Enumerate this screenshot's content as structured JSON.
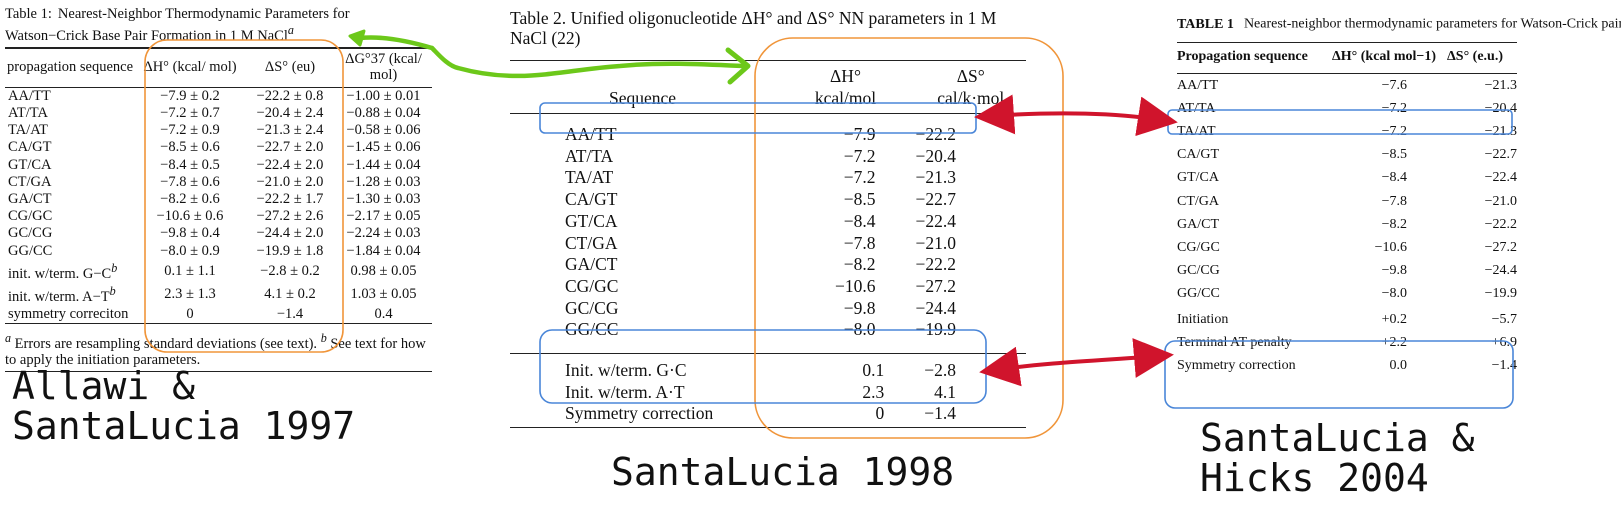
{
  "colors": {
    "orange": "#f0953a",
    "blue": "#4a86d8",
    "green": "#6cc81a",
    "red": "#d0142c"
  },
  "panel1": {
    "caption_prefix": "Table 1:",
    "caption_rest": "Nearest-Neighbor Thermodynamic Parameters for Watson−Crick Base Pair Formation in 1 M NaCl",
    "caption_sup": "a",
    "headers": {
      "seq": "propagation sequence",
      "dh": "ΔH° (kcal/ mol)",
      "ds": "ΔS° (eu)",
      "dg": "ΔG°37 (kcal/ mol)"
    },
    "rows": [
      {
        "seq": "AA/TT",
        "dh": "−7.9 ± 0.2",
        "ds": "−22.2 ± 0.8",
        "dg": "−1.00 ± 0.01"
      },
      {
        "seq": "AT/TA",
        "dh": "−7.2 ± 0.7",
        "ds": "−20.4 ± 2.4",
        "dg": "−0.88 ± 0.04"
      },
      {
        "seq": "TA/AT",
        "dh": "−7.2 ± 0.9",
        "ds": "−21.3 ± 2.4",
        "dg": "−0.58 ± 0.06"
      },
      {
        "seq": "CA/GT",
        "dh": "−8.5 ± 0.6",
        "ds": "−22.7 ± 2.0",
        "dg": "−1.45 ± 0.06"
      },
      {
        "seq": "GT/CA",
        "dh": "−8.4 ± 0.5",
        "ds": "−22.4 ± 2.0",
        "dg": "−1.44 ± 0.04"
      },
      {
        "seq": "CT/GA",
        "dh": "−7.8 ± 0.6",
        "ds": "−21.0 ± 2.0",
        "dg": "−1.28 ± 0.03"
      },
      {
        "seq": "GA/CT",
        "dh": "−8.2 ± 0.6",
        "ds": "−22.2 ± 1.7",
        "dg": "−1.30 ± 0.03"
      },
      {
        "seq": "CG/GC",
        "dh": "−10.6 ± 0.6",
        "ds": "−27.2 ± 2.6",
        "dg": "−2.17 ± 0.05"
      },
      {
        "seq": "GC/CG",
        "dh": "−9.8 ± 0.4",
        "ds": "−24.4 ± 2.0",
        "dg": "−2.24 ± 0.03"
      },
      {
        "seq": "GG/CC",
        "dh": "−8.0 ± 0.9",
        "ds": "−19.9 ± 1.8",
        "dg": "−1.84 ± 0.04"
      },
      {
        "seq": "init. w/term. G−C",
        "sup": "b",
        "dh": "0.1 ± 1.1",
        "ds": "−2.8 ± 0.2",
        "dg": "0.98 ± 0.05"
      },
      {
        "seq": "init. w/term. A−T",
        "sup": "b",
        "dh": "2.3 ± 1.3",
        "ds": "4.1 ± 0.2",
        "dg": "1.03 ± 0.05"
      },
      {
        "seq": "symmetry correciton",
        "dh": "0",
        "ds": "−1.4",
        "dg": "0.4"
      }
    ],
    "footnote_a_mark": "a",
    "footnote_a": "Errors are resampling standard deviations (see text).",
    "footnote_b_mark": "b",
    "footnote_b": "See text for how to apply the initiation parameters."
  },
  "panel2": {
    "caption": "Table 2.   Unified oligonucleotide ΔH° and ΔS° NN parameters in 1 M NaCl (22)",
    "headers": {
      "seq": "Sequence",
      "dh_top": "ΔH°",
      "dh_unit": "kcal/mol",
      "ds_top": "ΔS°",
      "ds_unit": "cal/k·mol"
    },
    "rows": [
      {
        "seq": "AA/TT",
        "dh": "−7.9",
        "ds": "−22.2"
      },
      {
        "seq": "AT/TA",
        "dh": "−7.2",
        "ds": "−20.4"
      },
      {
        "seq": "TA/AT",
        "dh": "−7.2",
        "ds": "−21.3"
      },
      {
        "seq": "CA/GT",
        "dh": "−8.5",
        "ds": "−22.7"
      },
      {
        "seq": "GT/CA",
        "dh": "−8.4",
        "ds": "−22.4"
      },
      {
        "seq": "CT/GA",
        "dh": "−7.8",
        "ds": "−21.0"
      },
      {
        "seq": "GA/CT",
        "dh": "−8.2",
        "ds": "−22.2"
      },
      {
        "seq": "CG/GC",
        "dh": "−10.6",
        "ds": "−27.2"
      },
      {
        "seq": "GC/CG",
        "dh": "−9.8",
        "ds": "−24.4"
      },
      {
        "seq": "GG/CC",
        "dh": "−8.0",
        "ds": "−19.9"
      }
    ],
    "init_rows": [
      {
        "seq": "Init. w/term. G·C",
        "dh": "0.1",
        "ds": "−2.8"
      },
      {
        "seq": "Init. w/term. A·T",
        "dh": "2.3",
        "ds": "4.1"
      },
      {
        "seq": "Symmetry correction",
        "dh": "0",
        "ds": "−1.4"
      }
    ]
  },
  "panel3": {
    "caption_label": "TABLE 1",
    "caption_rest": "Nearest-neighbor thermodynamic parameters for Watson-Crick pairs in 1 M NaCl",
    "caption_sup": "a",
    "headers": {
      "seq": "Propagation sequence",
      "dh": "ΔH° (kcal mol−1)",
      "ds": "ΔS° (e.u.)"
    },
    "rows": [
      {
        "seq": "AA/TT",
        "dh": "−7.6",
        "ds": "−21.3"
      },
      {
        "seq": "AT/TA",
        "dh": "−7.2",
        "ds": "−20.4"
      },
      {
        "seq": "TA/AT",
        "dh": "−7.2",
        "ds": "−21.3"
      },
      {
        "seq": "CA/GT",
        "dh": "−8.5",
        "ds": "−22.7"
      },
      {
        "seq": "GT/CA",
        "dh": "−8.4",
        "ds": "−22.4"
      },
      {
        "seq": "CT/GA",
        "dh": "−7.8",
        "ds": "−21.0"
      },
      {
        "seq": "GA/CT",
        "dh": "−8.2",
        "ds": "−22.2"
      },
      {
        "seq": "CG/GC",
        "dh": "−10.6",
        "ds": "−27.2"
      },
      {
        "seq": "GC/CG",
        "dh": "−9.8",
        "ds": "−24.4"
      },
      {
        "seq": "GG/CC",
        "dh": "−8.0",
        "ds": "−19.9"
      },
      {
        "seq": "Initiation",
        "dh": "+0.2",
        "ds": "−5.7"
      },
      {
        "seq": "Terminal AT penalty",
        "dh": "+2.2",
        "ds": "+6.9"
      },
      {
        "seq": "Symmetry correction",
        "dh": "0.0",
        "ds": "−1.4"
      }
    ]
  },
  "authors": {
    "first": [
      "Allawi &",
      "SantaLucia 1997"
    ],
    "second": "SantaLucia 1998",
    "third": [
      "SantaLucia &",
      "Hicks 2004"
    ]
  }
}
